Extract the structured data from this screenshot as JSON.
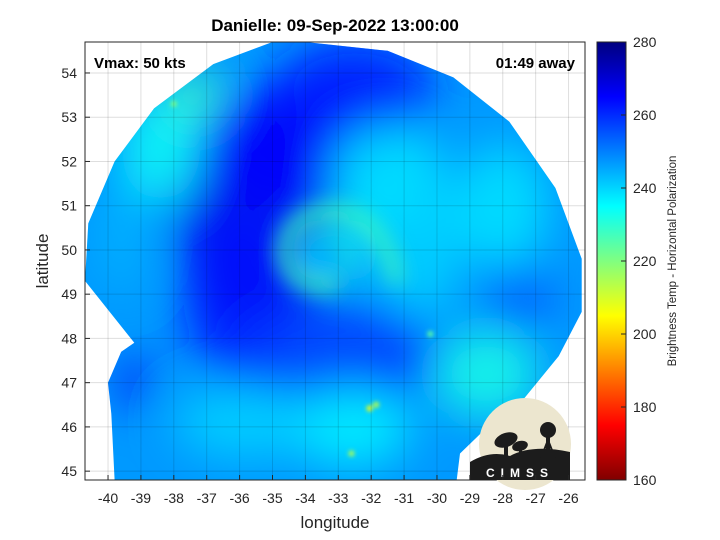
{
  "chart_data": {
    "type": "heatmap",
    "title": "Danielle: 09-Sep-2022 13:00:00",
    "xlabel": "longitude",
    "ylabel": "latitude",
    "xlim": [
      -40.7,
      -25.5
    ],
    "ylim": [
      44.8,
      54.7
    ],
    "x_ticks": [
      -40,
      -39,
      -38,
      -37,
      -36,
      -35,
      -34,
      -33,
      -32,
      -31,
      -30,
      -29,
      -28,
      -27,
      -26
    ],
    "y_ticks": [
      45,
      46,
      47,
      48,
      49,
      50,
      51,
      52,
      53,
      54
    ],
    "grid": true,
    "annotations": {
      "left": "Vmax: 50 kts",
      "right": "01:49 away"
    },
    "colorbar": {
      "label": "Brightness Temp - Horizontal Polarization",
      "min": 160,
      "max": 280,
      "ticks": [
        160,
        180,
        200,
        220,
        240,
        260,
        280
      ],
      "colormap": "jet"
    },
    "storm_center": {
      "lon": -33.6,
      "lat": 49.9
    },
    "fields": {
      "background_tb": 247,
      "swath_edge": [
        [
          -34.0,
          54.7
        ],
        [
          -31.5,
          54.5
        ],
        [
          -29.5,
          53.9
        ],
        [
          -27.8,
          52.9
        ],
        [
          -26.4,
          51.4
        ],
        [
          -25.6,
          49.8
        ],
        [
          -25.6,
          48.6
        ],
        [
          -26.3,
          47.6
        ],
        [
          -27.4,
          46.6
        ],
        [
          -28.6,
          45.9
        ],
        [
          -29.3,
          45.4
        ],
        [
          -29.4,
          44.8
        ],
        [
          -39.8,
          44.8
        ],
        [
          -39.9,
          46.3
        ],
        [
          -40.0,
          47.0
        ],
        [
          -39.6,
          47.7
        ],
        [
          -39.2,
          47.9
        ],
        [
          -40.7,
          49.3
        ],
        [
          -40.6,
          50.6
        ],
        [
          -39.8,
          52.0
        ],
        [
          -38.6,
          53.2
        ],
        [
          -36.8,
          54.2
        ],
        [
          -35.0,
          54.7
        ]
      ],
      "blobs": [
        {
          "lon": -35.3,
          "lat": 50.8,
          "rlon": 2.6,
          "rlat": 2.6,
          "tb": 268
        },
        {
          "lon": -36.0,
          "lat": 49.0,
          "rlon": 1.7,
          "rlat": 2.0,
          "tb": 264
        },
        {
          "lon": -34.0,
          "lat": 52.4,
          "rlon": 3.2,
          "rlat": 1.5,
          "tb": 265
        },
        {
          "lon": -32.5,
          "lat": 53.6,
          "rlon": 2.4,
          "rlat": 1.2,
          "tb": 262
        },
        {
          "lon": -33.0,
          "lat": 47.6,
          "rlon": 3.2,
          "rlat": 1.2,
          "tb": 258
        },
        {
          "lon": -39.2,
          "lat": 47.0,
          "rlon": 0.5,
          "rlat": 0.6,
          "tb": 266
        },
        {
          "lon": -33.1,
          "lat": 50.0,
          "rlon": 0.9,
          "rlat": 0.7,
          "tb": 232
        },
        {
          "lon": -31.5,
          "lat": 51.6,
          "rlon": 1.7,
          "rlat": 1.2,
          "tb": 236
        },
        {
          "lon": -30.5,
          "lat": 50.2,
          "rlon": 1.3,
          "rlat": 1.7,
          "tb": 240
        },
        {
          "lon": -38.4,
          "lat": 52.3,
          "rlon": 1.2,
          "rlat": 1.2,
          "tb": 234
        },
        {
          "lon": -37.4,
          "lat": 53.5,
          "rlon": 0.9,
          "rlat": 0.6,
          "tb": 228
        },
        {
          "lon": -39.6,
          "lat": 50.3,
          "rlon": 0.8,
          "rlat": 1.3,
          "tb": 244
        },
        {
          "lon": -32.6,
          "lat": 46.0,
          "rlon": 1.8,
          "rlat": 0.9,
          "tb": 236
        },
        {
          "lon": -28.5,
          "lat": 47.2,
          "rlon": 1.6,
          "rlat": 1.0,
          "tb": 232
        },
        {
          "lon": -27.5,
          "lat": 48.9,
          "rlon": 1.1,
          "rlat": 0.8,
          "tb": 254
        },
        {
          "lon": -28.0,
          "lat": 51.0,
          "rlon": 1.4,
          "rlat": 1.4,
          "tb": 238
        },
        {
          "lon": -35.8,
          "lat": 46.1,
          "rlon": 2.2,
          "rlat": 0.8,
          "tb": 240
        }
      ],
      "warm_spots": [
        {
          "lon": -32.05,
          "lat": 46.42,
          "tb": 205
        },
        {
          "lon": -31.85,
          "lat": 46.5,
          "tb": 212
        },
        {
          "lon": -32.6,
          "lat": 45.4,
          "tb": 214
        },
        {
          "lon": -38.0,
          "lat": 53.3,
          "tb": 220
        },
        {
          "lon": -30.2,
          "lat": 48.1,
          "tb": 224
        }
      ]
    }
  },
  "logo": {
    "text": "CIMSS"
  }
}
